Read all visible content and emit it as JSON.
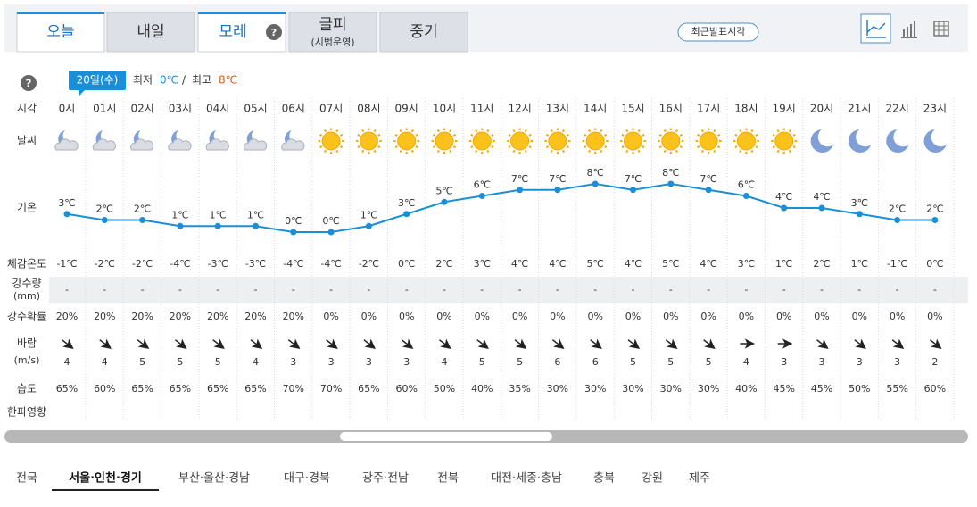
{
  "tabs": [
    "오늘",
    "내일",
    "모레",
    "글피",
    "중기"
  ],
  "tab_note": "(시범운영)",
  "latest_button": "최근발표시각",
  "date_badge": "20일(수)",
  "min_label": "최저",
  "min_value": "0℃",
  "separator": "/",
  "max_label": "최고",
  "max_value": "8℃",
  "row_labels": {
    "time": "시각",
    "weather": "날씨",
    "temperature": "기온",
    "feels": "체감온도",
    "precip": "강수량",
    "precip_unit": "(mm)",
    "precip_prob": "강수확률",
    "wind": "바람",
    "wind_unit": "(m/s)",
    "humidity": "습도",
    "cold_impact": "한파영향"
  },
  "hours": [
    "0시",
    "01시",
    "02시",
    "03시",
    "04시",
    "05시",
    "06시",
    "07시",
    "08시",
    "09시",
    "10시",
    "11시",
    "12시",
    "13시",
    "14시",
    "15시",
    "16시",
    "17시",
    "18시",
    "19시",
    "20시",
    "21시",
    "22시",
    "23시"
  ],
  "temperature": {
    "values": [
      3,
      2,
      2,
      1,
      1,
      1,
      0,
      0,
      1,
      3,
      5,
      6,
      7,
      7,
      8,
      7,
      8,
      7,
      6,
      4,
      4,
      3,
      2,
      2
    ],
    "value_labels": [
      "3℃",
      "2℃",
      "2℃",
      "1℃",
      "1℃",
      "1℃",
      "0℃",
      "0℃",
      "1℃",
      "3℃",
      "5℃",
      "6℃",
      "7℃",
      "7℃",
      "8℃",
      "7℃",
      "8℃",
      "7℃",
      "6℃",
      "4℃",
      "4℃",
      "3℃",
      "2℃",
      "2℃"
    ]
  },
  "feels": [
    "-1℃",
    "-2℃",
    "-2℃",
    "-4℃",
    "-3℃",
    "-3℃",
    "-4℃",
    "-4℃",
    "-2℃",
    "0℃",
    "2℃",
    "3℃",
    "4℃",
    "4℃",
    "5℃",
    "4℃",
    "5℃",
    "4℃",
    "3℃",
    "1℃",
    "2℃",
    "1℃",
    "-1℃",
    "0℃"
  ],
  "precip": [
    "-",
    "-",
    "-",
    "-",
    "-",
    "-",
    "-",
    "-",
    "-",
    "-",
    "-",
    "-",
    "-",
    "-",
    "-",
    "-",
    "-",
    "-",
    "-",
    "-",
    "-",
    "-",
    "-",
    "-"
  ],
  "precip_prob": [
    "20%",
    "20%",
    "20%",
    "20%",
    "20%",
    "20%",
    "20%",
    "0%",
    "0%",
    "0%",
    "0%",
    "0%",
    "0%",
    "0%",
    "0%",
    "0%",
    "0%",
    "0%",
    "0%",
    "0%",
    "0%",
    "0%",
    "0%",
    "0%"
  ],
  "wind_speed": [
    "4",
    "4",
    "5",
    "5",
    "5",
    "4",
    "3",
    "3",
    "3",
    "3",
    "4",
    "5",
    "5",
    "6",
    "6",
    "5",
    "5",
    "5",
    "4",
    "3",
    "3",
    "3",
    "3",
    "2"
  ],
  "humidity": [
    "65%",
    "60%",
    "65%",
    "65%",
    "65%",
    "65%",
    "70%",
    "70%",
    "65%",
    "60%",
    "50%",
    "40%",
    "35%",
    "30%",
    "30%",
    "30%",
    "30%",
    "30%",
    "40%",
    "45%",
    "45%",
    "50%",
    "55%",
    "60%"
  ],
  "regions": [
    "전국",
    "서울·인천·경기",
    "부산·울산·경남",
    "대구·경북",
    "광주·전남",
    "전북",
    "대전·세종·충남",
    "충북",
    "강원",
    "제주"
  ]
}
